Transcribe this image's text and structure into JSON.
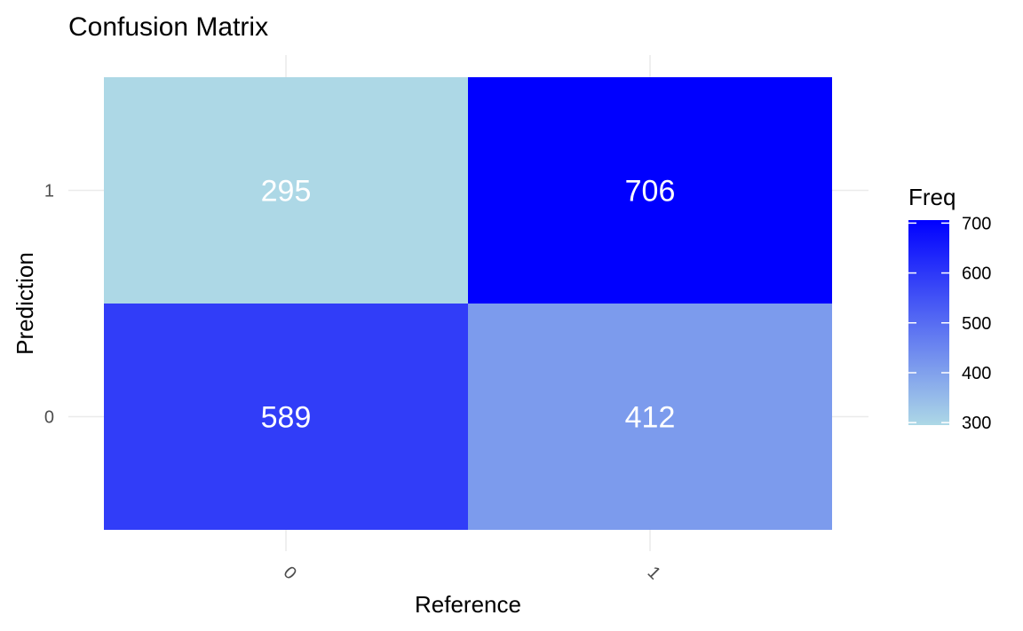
{
  "chart_data": {
    "type": "heatmap",
    "title": "Confusion Matrix",
    "xlabel": "Reference",
    "ylabel": "Prediction",
    "x_categories": [
      "0",
      "1"
    ],
    "y_categories": [
      "0",
      "1"
    ],
    "cells": [
      {
        "x": "0",
        "y": "1",
        "value": 295
      },
      {
        "x": "1",
        "y": "1",
        "value": 706
      },
      {
        "x": "0",
        "y": "0",
        "value": 589
      },
      {
        "x": "1",
        "y": "0",
        "value": 412
      }
    ],
    "legend": {
      "title": "Freq",
      "ticks": [
        300,
        400,
        500,
        600,
        700
      ],
      "range": [
        295,
        706
      ],
      "low_color": "#add8e6",
      "high_color": "#0000ff",
      "placement": "right"
    },
    "grid": true
  }
}
